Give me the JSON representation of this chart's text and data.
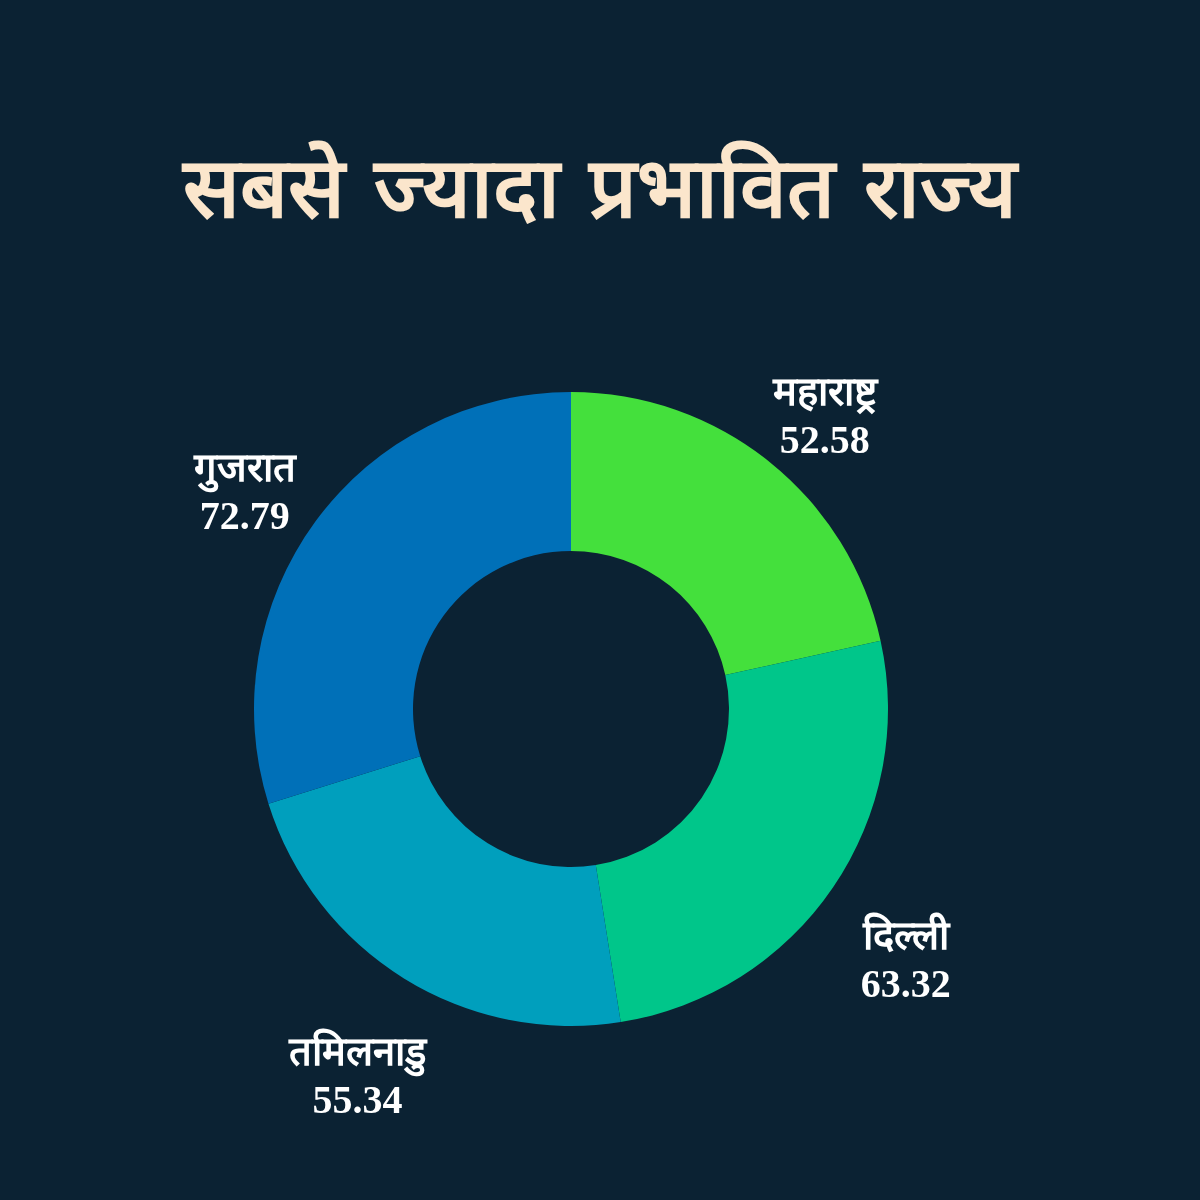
{
  "chart_data": {
    "type": "donut",
    "title": "सबसे ज्यादा प्रभावित राज्य",
    "categories": [
      "महाराष्ट्र",
      "दिल्ली",
      "तमिलनाडु",
      "गुजरात"
    ],
    "values": [
      52.58,
      63.32,
      55.34,
      72.79
    ],
    "colors": [
      "#44e03c",
      "#00c68a",
      "#009fbd",
      "#0070b8"
    ],
    "data_labels": true
  }
}
